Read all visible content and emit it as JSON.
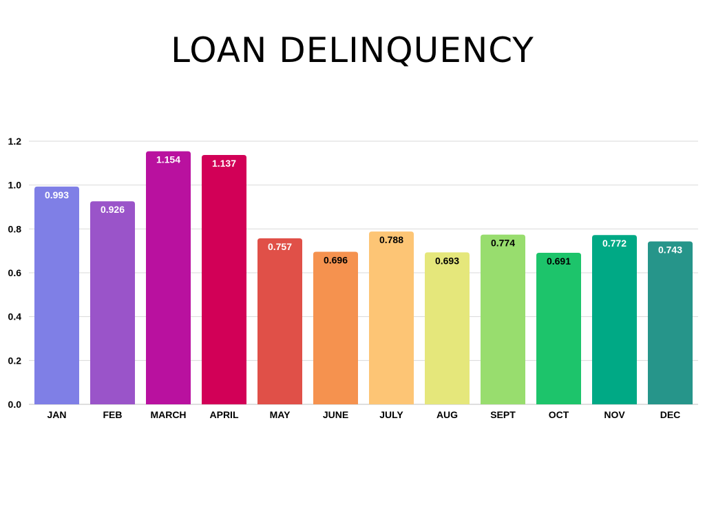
{
  "chart_data": {
    "type": "bar",
    "title": "LOAN DELINQUENCY",
    "xlabel": "",
    "ylabel": "",
    "ylim": [
      0,
      1.2
    ],
    "yticks": [
      "0.0",
      "0.2",
      "0.4",
      "0.6",
      "0.8",
      "1.0",
      "1.2"
    ],
    "grid": true,
    "categories": [
      "JAN",
      "FEB",
      "MARCH",
      "APRIL",
      "MAY",
      "JUNE",
      "JULY",
      "AUG",
      "SEPT",
      "OCT",
      "NOV",
      "DEC"
    ],
    "values": [
      0.993,
      0.926,
      1.154,
      1.137,
      0.757,
      0.696,
      0.788,
      0.693,
      0.774,
      0.691,
      0.772,
      0.743
    ],
    "labels": [
      "0.993",
      "0.926",
      "1.154",
      "1.137",
      "0.757",
      "0.696",
      "0.788",
      "0.693",
      "0.774",
      "0.691",
      "0.772",
      "0.743"
    ],
    "colors": [
      "#7f7fe6",
      "#9a54c9",
      "#b9119f",
      "#d20057",
      "#e05048",
      "#f5924f",
      "#fdc575",
      "#e5e77b",
      "#98dd6e",
      "#1dc46b",
      "#00a985",
      "#26958a"
    ],
    "label_colors": [
      "#ffffff",
      "#ffffff",
      "#ffffff",
      "#ffffff",
      "#ffffff",
      "#000000",
      "#000000",
      "#000000",
      "#000000",
      "#000000",
      "#ffffff",
      "#ffffff"
    ]
  }
}
